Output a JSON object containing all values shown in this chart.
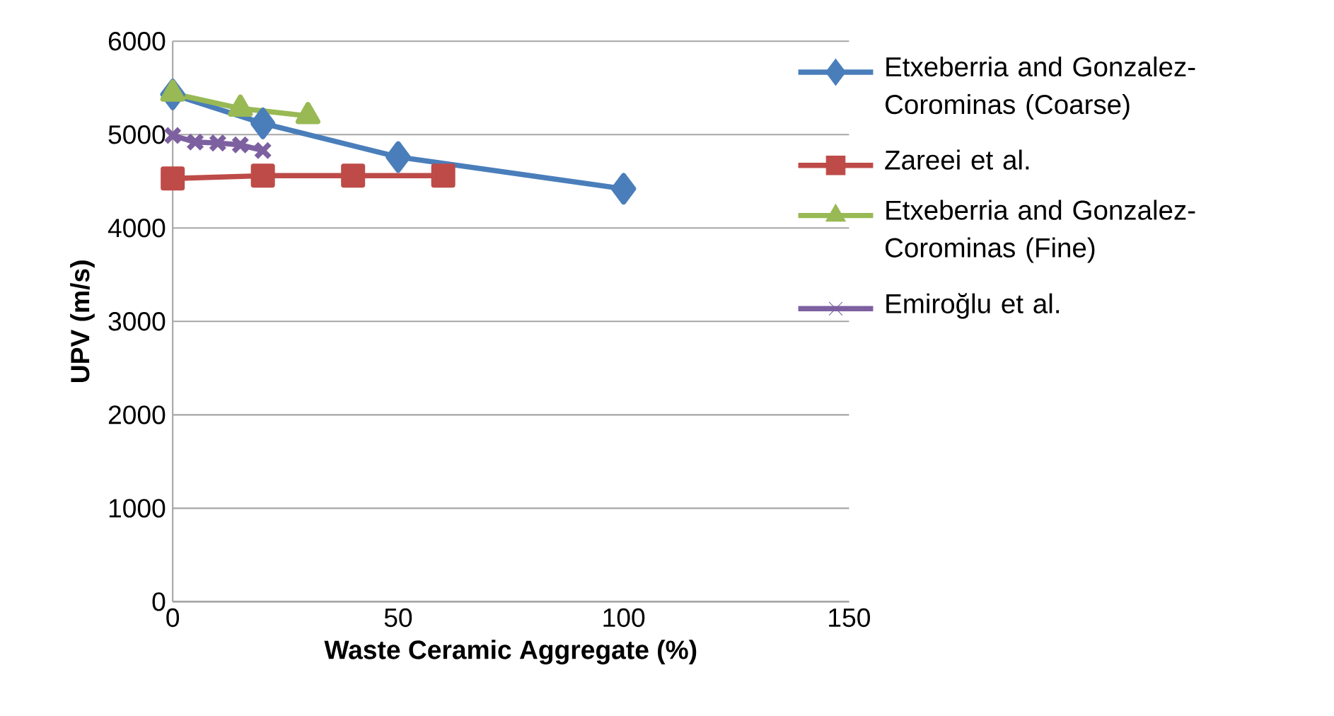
{
  "chart_data": {
    "type": "line",
    "xlabel": "Waste Ceramic Aggregate (%)",
    "ylabel": "UPV (m/s)",
    "xlim": [
      0,
      150
    ],
    "ylim": [
      0,
      6000
    ],
    "xticks": [
      0,
      50,
      100,
      150
    ],
    "yticks": [
      0,
      1000,
      2000,
      3000,
      4000,
      5000,
      6000
    ],
    "grid": "y",
    "legend": "right",
    "line_style": "solid",
    "series": [
      {
        "name": "Etxeberria and Gonzalez-Corominas (Coarse)",
        "color": "#4a7ebb",
        "marker": "diamond",
        "x": [
          0,
          20,
          50,
          100
        ],
        "values": [
          5430,
          5120,
          4760,
          4420
        ]
      },
      {
        "name": "Zareei et al.",
        "color": "#be4b48",
        "marker": "square",
        "x": [
          0,
          20,
          40,
          60
        ],
        "values": [
          4530,
          4560,
          4560,
          4560
        ]
      },
      {
        "name": "Etxeberria and Gonzalez-Corominas (Fine)",
        "color": "#98b954",
        "marker": "triangle",
        "x": [
          0,
          15,
          30
        ],
        "values": [
          5440,
          5280,
          5200
        ]
      },
      {
        "name": "Emiroğlu et al.",
        "color": "#7d60a0",
        "marker": "cross",
        "x": [
          0,
          5,
          10,
          15,
          20
        ],
        "values": [
          4990,
          4920,
          4910,
          4890,
          4830
        ]
      }
    ]
  }
}
